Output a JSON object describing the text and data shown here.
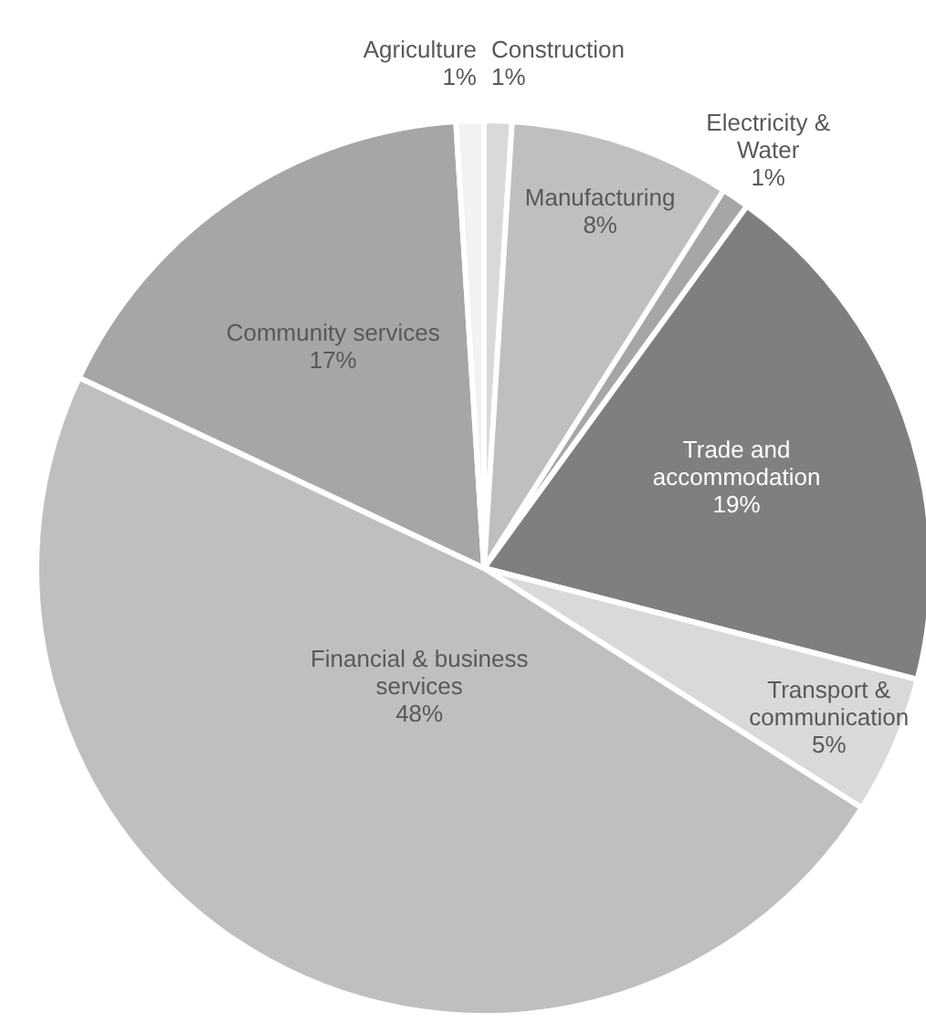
{
  "chart_data": {
    "type": "pie",
    "categories": [
      "Construction",
      "Manufacturing",
      "Electricity & Water",
      "Trade and accommodation",
      "Transport & communication",
      "Financial & business services",
      "Community services",
      "Agriculture"
    ],
    "values": [
      1,
      8,
      1,
      19,
      5,
      48,
      17,
      1
    ],
    "colors": [
      "#d9d9d9",
      "#bfbfbf",
      "#a6a6a6",
      "#7f7f7f",
      "#d9d9d9",
      "#bfbfbf",
      "#a6a6a6",
      "#f2f2f2"
    ],
    "value_labels": [
      "1%",
      "8%",
      "1%",
      "19%",
      "5%",
      "48%",
      "17%",
      "1%"
    ]
  }
}
